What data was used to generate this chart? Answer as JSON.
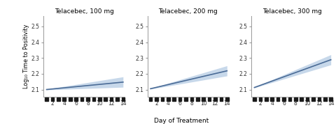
{
  "titles": [
    "Telacebec, 100 mg",
    "Telacebec, 200 mg",
    "Telacebec, 300 mg"
  ],
  "slopes": [
    0.0036,
    0.0087,
    0.0135
  ],
  "intercepts": [
    2.097,
    2.097,
    2.1
  ],
  "ci_lower": [
    0.0013,
    0.0064,
    0.0112
  ],
  "ci_upper": [
    0.006,
    0.011,
    0.0158
  ],
  "x_min": 1,
  "x_max": 14,
  "y_min": 2.055,
  "y_max": 2.565,
  "yticks": [
    2.1,
    2.2,
    2.3,
    2.4,
    2.5
  ],
  "xticks": [
    2,
    4,
    6,
    8,
    10,
    12,
    14
  ],
  "xlabel": "Day of Treatment",
  "ylabel": "Log₁₀ Time to Positivity",
  "line_color": "#4a6b96",
  "ci_color": "#aac4e0",
  "marker_color": "#1a1a1a",
  "background_color": "#ffffff",
  "spine_color": "#999999",
  "n_squares": 14,
  "figsize": [
    4.8,
    1.78
  ],
  "dpi": 100
}
